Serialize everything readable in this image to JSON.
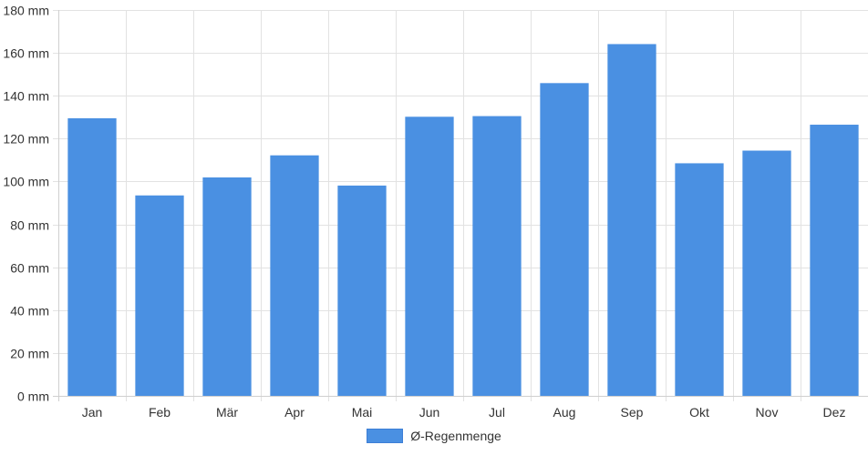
{
  "chart_data": {
    "type": "bar",
    "categories": [
      "Jan",
      "Feb",
      "Mär",
      "Apr",
      "Mai",
      "Jun",
      "Jul",
      "Aug",
      "Sep",
      "Okt",
      "Nov",
      "Dez"
    ],
    "series": [
      {
        "name": "Ø-Regenmenge",
        "values": [
          129.5,
          93.5,
          101.9,
          112.2,
          98.1,
          130.2,
          130.5,
          145.9,
          164.1,
          108.5,
          114.4,
          126.5
        ],
        "color": "#4a90e2"
      }
    ],
    "y_ticks": [
      "0 mm",
      "20 mm",
      "40 mm",
      "60 mm",
      "80 mm",
      "100 mm",
      "120 mm",
      "140 mm",
      "160 mm",
      "180 mm"
    ],
    "ylim": [
      0,
      180
    ],
    "grid": true,
    "legend_position": "bottom"
  }
}
